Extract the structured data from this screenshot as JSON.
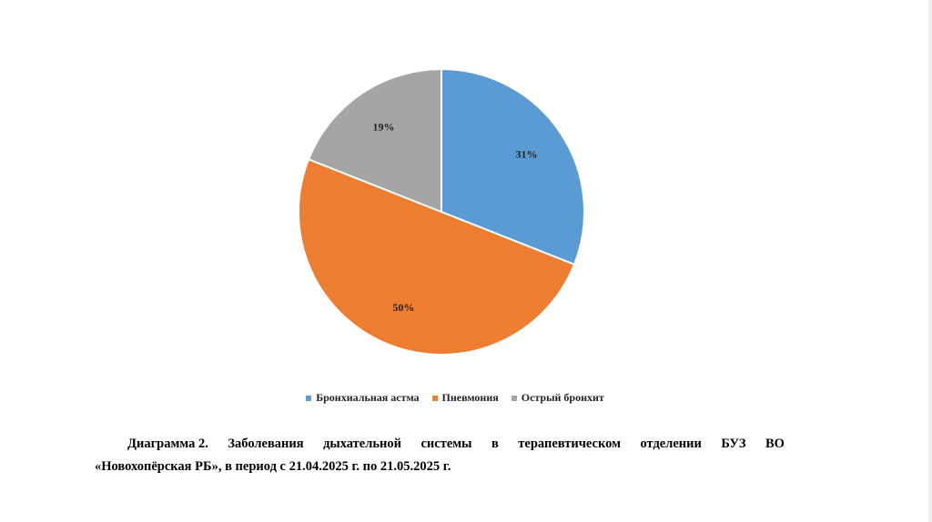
{
  "chart_data": {
    "type": "pie",
    "categories": [
      "Бронхиальная астма",
      "Пневмония",
      "Острый бронхит"
    ],
    "values": [
      31,
      50,
      19
    ],
    "data_labels": [
      "31%",
      "50%",
      "19%"
    ],
    "colors": [
      "#5b9bd5",
      "#ed7d31",
      "#a5a5a5"
    ],
    "legend_placement": "bottom",
    "title": ""
  },
  "caption": {
    "words_line1": [
      "Диаграмма 2.",
      "Заболевания",
      "дыхательной",
      "системы",
      "в",
      "терапевтическом",
      "отделении",
      "БУЗ",
      "ВО"
    ],
    "line2": "«Новохопёрская РБ», в период с 21.04.2025 г. по 21.05.2025 г."
  }
}
